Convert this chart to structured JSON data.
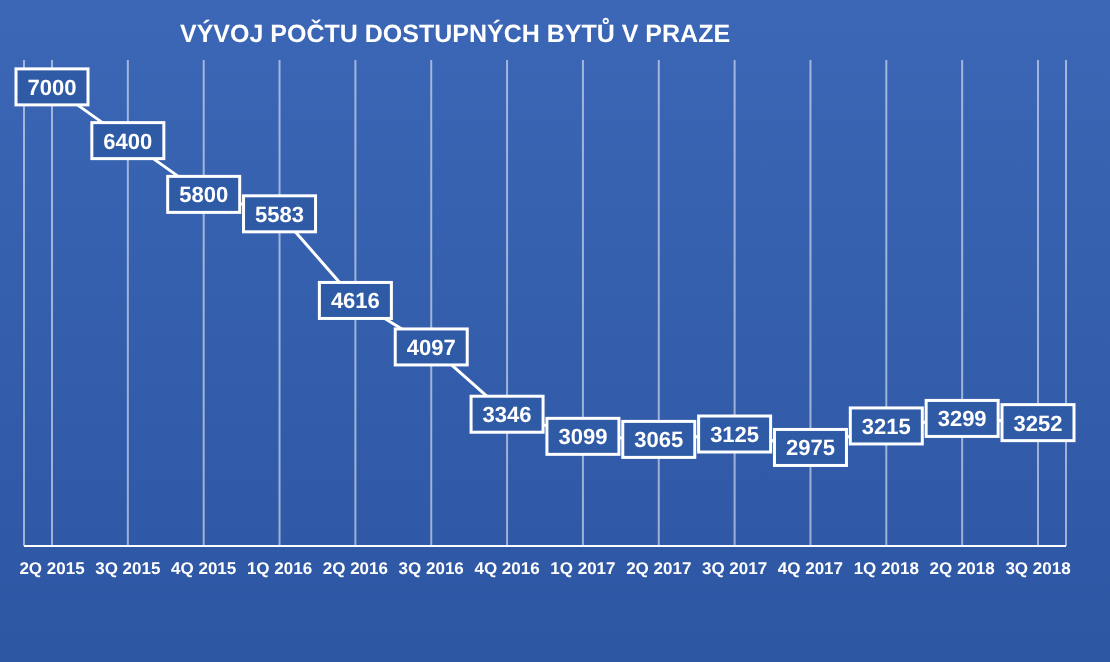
{
  "chart_data": {
    "type": "line",
    "title": "VÝVOJ POČTU DOSTUPNÝCH BYTŮ V PRAZE",
    "categories": [
      "2Q 2015",
      "3Q 2015",
      "4Q 2015",
      "1Q 2016",
      "2Q 2016",
      "3Q 2016",
      "4Q 2016",
      "1Q 2017",
      "2Q 2017",
      "3Q 2017",
      "4Q 2017",
      "1Q 2018",
      "2Q 2018",
      "3Q 2018"
    ],
    "series": [
      {
        "color": "#ffffff",
        "values": [
          7000,
          6400,
          5800,
          5583,
          4616,
          4097,
          3346,
          3099,
          3065,
          3125,
          2975,
          3215,
          3299,
          3252
        ]
      }
    ],
    "tick_labels": "x",
    "data_labels": true,
    "grid": "x",
    "marker": "square",
    "legend": false
  }
}
